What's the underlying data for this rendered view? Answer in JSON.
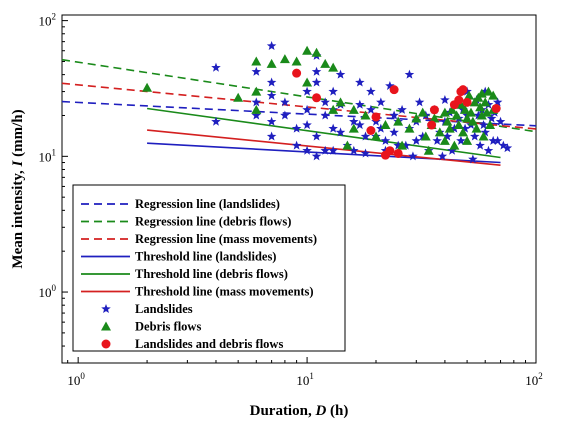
{
  "chart_data": {
    "type": "scatter",
    "title": "",
    "xlabel": {
      "main": "Duration, ",
      "var": "D",
      "unit": " (h)"
    },
    "ylabel": {
      "main": "Mean intensity, ",
      "var": "I",
      "unit": " (mm/h)"
    },
    "x_scale": "log",
    "y_scale": "log",
    "xlim": [
      0.85,
      100
    ],
    "ylim": [
      0.3,
      110
    ],
    "x_ticks": [
      {
        "value": 1,
        "base": "10",
        "exp": "0"
      },
      {
        "value": 10,
        "base": "10",
        "exp": "1"
      },
      {
        "value": 100,
        "base": "10",
        "exp": "2"
      }
    ],
    "y_ticks": [
      {
        "value": 1,
        "base": "10",
        "exp": "0"
      },
      {
        "value": 10,
        "base": "10",
        "exp": "1"
      },
      {
        "value": 100,
        "base": "10",
        "exp": "2"
      }
    ],
    "grid": false,
    "legend_position": "lower-left",
    "lines": [
      {
        "name": "Regression line (landslides)",
        "color": "#1f1fbf",
        "dash": true,
        "x": [
          0.85,
          100
        ],
        "y": [
          25.3,
          16.8
        ]
      },
      {
        "name": "Regression line (debris flows)",
        "color": "#1a8a1a",
        "dash": true,
        "x": [
          0.85,
          100
        ],
        "y": [
          51.5,
          15.2
        ]
      },
      {
        "name": "Regression line (mass movements)",
        "color": "#d42020",
        "dash": true,
        "x": [
          0.85,
          100
        ],
        "y": [
          34.5,
          15.9
        ]
      },
      {
        "name": "Threshold line (landslides)",
        "color": "#1f1fbf",
        "dash": false,
        "x": [
          2,
          70
        ],
        "y": [
          12.5,
          9.0
        ]
      },
      {
        "name": "Threshold line (debris flows)",
        "color": "#1a8a1a",
        "dash": false,
        "x": [
          2,
          70
        ],
        "y": [
          22.5,
          9.8
        ]
      },
      {
        "name": "Threshold line (mass movements)",
        "color": "#d42020",
        "dash": false,
        "x": [
          2,
          70
        ],
        "y": [
          15.6,
          8.6
        ]
      }
    ],
    "series": [
      {
        "name": "Landslides",
        "marker": "star",
        "color": "#1f1fbf",
        "points": [
          [
            4,
            45
          ],
          [
            4,
            18
          ],
          [
            6,
            42
          ],
          [
            6,
            25
          ],
          [
            6,
            20
          ],
          [
            7,
            65
          ],
          [
            7,
            35
          ],
          [
            7,
            28
          ],
          [
            7,
            18
          ],
          [
            7,
            14
          ],
          [
            8,
            25
          ],
          [
            8,
            20
          ],
          [
            9,
            16
          ],
          [
            9,
            12
          ],
          [
            10,
            30
          ],
          [
            10,
            22
          ],
          [
            10,
            17
          ],
          [
            10,
            11
          ],
          [
            11,
            55
          ],
          [
            11,
            42
          ],
          [
            11,
            35
          ],
          [
            11,
            14
          ],
          [
            11,
            10
          ],
          [
            12,
            25
          ],
          [
            12,
            20
          ],
          [
            12,
            11
          ],
          [
            13,
            30
          ],
          [
            13,
            22
          ],
          [
            13,
            16
          ],
          [
            13,
            11
          ],
          [
            14,
            40
          ],
          [
            14,
            24
          ],
          [
            14,
            15
          ],
          [
            15,
            12
          ],
          [
            16,
            18
          ],
          [
            16,
            11
          ],
          [
            17,
            35
          ],
          [
            17,
            24
          ],
          [
            17,
            17
          ],
          [
            18,
            14
          ],
          [
            18,
            10.5
          ],
          [
            19,
            30
          ],
          [
            19,
            22
          ],
          [
            20,
            18
          ],
          [
            20,
            14
          ],
          [
            21,
            25
          ],
          [
            21,
            16
          ],
          [
            22,
            11
          ],
          [
            22,
            13
          ],
          [
            23,
            33
          ],
          [
            24,
            20
          ],
          [
            24,
            15
          ],
          [
            25,
            12
          ],
          [
            25,
            18
          ],
          [
            26,
            22
          ],
          [
            27,
            12
          ],
          [
            28,
            16
          ],
          [
            28,
            40
          ],
          [
            29,
            10
          ],
          [
            30,
            18
          ],
          [
            30,
            13
          ],
          [
            31,
            25
          ],
          [
            32,
            14
          ],
          [
            33,
            20
          ],
          [
            34,
            11
          ],
          [
            35,
            17
          ],
          [
            36,
            22
          ],
          [
            37,
            13
          ],
          [
            38,
            15
          ],
          [
            39,
            10
          ],
          [
            40,
            18
          ],
          [
            40,
            26
          ],
          [
            41,
            14
          ],
          [
            42,
            21
          ],
          [
            43,
            11
          ],
          [
            44,
            16
          ],
          [
            45,
            24
          ],
          [
            46,
            19
          ],
          [
            47,
            13
          ],
          [
            48,
            22
          ],
          [
            49,
            16
          ],
          [
            50,
            30
          ],
          [
            50,
            20
          ],
          [
            52,
            17
          ],
          [
            53,
            9.5
          ],
          [
            54,
            14
          ],
          [
            55,
            26
          ],
          [
            56,
            20
          ],
          [
            57,
            12
          ],
          [
            58,
            22
          ],
          [
            59,
            17
          ],
          [
            60,
            30
          ],
          [
            60,
            15
          ],
          [
            62,
            24
          ],
          [
            62,
            11
          ],
          [
            64,
            19
          ],
          [
            65,
            13
          ],
          [
            66,
            21
          ],
          [
            68,
            25
          ],
          [
            68,
            13
          ],
          [
            70,
            18
          ],
          [
            72,
            12
          ],
          [
            75,
            11.5
          ]
        ]
      },
      {
        "name": "Debris flows",
        "marker": "triangle",
        "color": "#1a8a1a",
        "points": [
          [
            2,
            32
          ],
          [
            5,
            27
          ],
          [
            6,
            50
          ],
          [
            6,
            30
          ],
          [
            6,
            22
          ],
          [
            7,
            48
          ],
          [
            8,
            52
          ],
          [
            9,
            50
          ],
          [
            10,
            60
          ],
          [
            10,
            35
          ],
          [
            11,
            58
          ],
          [
            12,
            48
          ],
          [
            13,
            45
          ],
          [
            13,
            22
          ],
          [
            14,
            25
          ],
          [
            15,
            12
          ],
          [
            16,
            22
          ],
          [
            16,
            16
          ],
          [
            18,
            20
          ],
          [
            20,
            14
          ],
          [
            22,
            17
          ],
          [
            25,
            18
          ],
          [
            26,
            12
          ],
          [
            28,
            16
          ],
          [
            30,
            19
          ],
          [
            32,
            21
          ],
          [
            33,
            14
          ],
          [
            34,
            11
          ],
          [
            35,
            17
          ],
          [
            36,
            19
          ],
          [
            38,
            15
          ],
          [
            40,
            21
          ],
          [
            40,
            13
          ],
          [
            41,
            18
          ],
          [
            42,
            16
          ],
          [
            43,
            22
          ],
          [
            44,
            12
          ],
          [
            45,
            20
          ],
          [
            46,
            17
          ],
          [
            47,
            24
          ],
          [
            48,
            15
          ],
          [
            49,
            22
          ],
          [
            50,
            19
          ],
          [
            50,
            13
          ],
          [
            51,
            28
          ],
          [
            52,
            21
          ],
          [
            53,
            18
          ],
          [
            54,
            25
          ],
          [
            55,
            16
          ],
          [
            56,
            27
          ],
          [
            57,
            23
          ],
          [
            58,
            20
          ],
          [
            58,
            29
          ],
          [
            59,
            14
          ],
          [
            60,
            25
          ],
          [
            61,
            21
          ],
          [
            62,
            30
          ],
          [
            63,
            17
          ],
          [
            65,
            28
          ],
          [
            65,
            22
          ]
        ]
      },
      {
        "name": "Landslides and debris flows",
        "marker": "circle",
        "color": "#e8141c",
        "points": [
          [
            9,
            41
          ],
          [
            11,
            27
          ],
          [
            19,
            15.5
          ],
          [
            20,
            19.5
          ],
          [
            22,
            10.2
          ],
          [
            23,
            11
          ],
          [
            24,
            31
          ],
          [
            25,
            10.5
          ],
          [
            35,
            17
          ],
          [
            36,
            22
          ],
          [
            44,
            24
          ],
          [
            46,
            26
          ],
          [
            47,
            30
          ],
          [
            48,
            31
          ],
          [
            50,
            25
          ],
          [
            67,
            22.5
          ]
        ]
      }
    ]
  }
}
